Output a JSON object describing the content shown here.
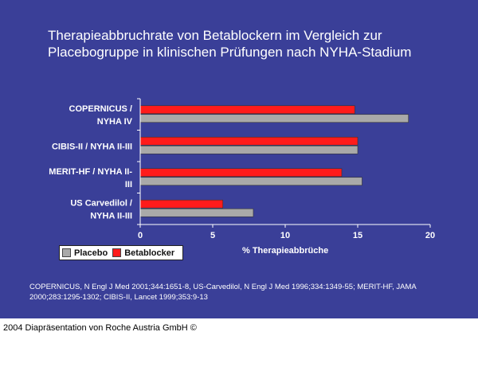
{
  "title_lines": [
    "Therapieabbruchrate von Betablockern im Vergleich zur",
    "Placebogruppe in klinischen Prüfungen nach NYHA-Stadium"
  ],
  "references": "COPERNICUS, N Engl J Med 2001;344:1651-8, US-Carvedilol, N Engl J Med 1996;334:1349-55; MERIT-HF, JAMA 2000;283:1295-1302; CIBIS-II, Lancet 1999;353:9-13",
  "footer": "2004 Diapräsentation von Roche Austria GmbH ©",
  "colors": {
    "background": "#3a3f98",
    "placebo": "#a9a9a9",
    "betablocker": "#ff1b1b",
    "text": "#ffffff"
  },
  "chart_data": {
    "type": "bar",
    "orientation": "horizontal",
    "title": "",
    "xlabel": "% Therapieabbrüche",
    "ylabel": "",
    "xlim": [
      0,
      20
    ],
    "xticks": [
      0,
      5,
      10,
      15,
      20
    ],
    "categories": [
      [
        "COPERNICUS /",
        "NYHA IV"
      ],
      [
        "CIBIS-II / NYHA II-III"
      ],
      [
        "MERIT-HF / NYHA II-",
        "III"
      ],
      [
        "US Carvedilol /",
        "NYHA II-III"
      ]
    ],
    "series": [
      {
        "name": "Betablocker",
        "values": [
          14.8,
          15.0,
          13.9,
          5.7
        ]
      },
      {
        "name": "Placebo",
        "values": [
          18.5,
          15.0,
          15.3,
          7.8
        ]
      }
    ],
    "legend_order": [
      "Placebo",
      "Betablocker"
    ],
    "legend_position": "bottom-left",
    "grid": false
  }
}
